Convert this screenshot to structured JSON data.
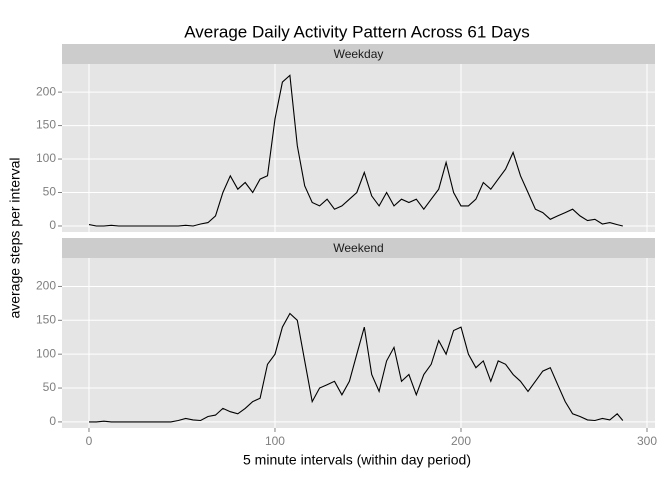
{
  "chart_data": {
    "type": "line",
    "title": "Average Daily Activity Pattern Across 61 Days",
    "x_label": "5 minute intervals (within day period)",
    "y_label": "average steps per interval",
    "xlim": [
      -14.5,
      304.3
    ],
    "xticks": [
      0,
      100,
      200,
      300
    ],
    "ylim": [
      -9,
      242
    ],
    "yticks": [
      0,
      50,
      100,
      150,
      200
    ],
    "color": "#000000",
    "x": [
      0,
      4,
      8,
      12,
      16,
      20,
      24,
      28,
      32,
      36,
      40,
      44,
      48,
      52,
      56,
      60,
      64,
      68,
      72,
      76,
      80,
      84,
      88,
      92,
      96,
      100,
      104,
      108,
      112,
      116,
      120,
      124,
      128,
      132,
      136,
      140,
      144,
      148,
      152,
      156,
      160,
      164,
      168,
      172,
      176,
      180,
      184,
      188,
      192,
      196,
      200,
      204,
      208,
      212,
      216,
      220,
      224,
      228,
      232,
      236,
      240,
      244,
      248,
      252,
      256,
      260,
      264,
      268,
      272,
      276,
      280,
      284,
      287
    ],
    "panels": [
      {
        "name": "Weekday",
        "values": [
          2,
          0,
          0,
          1,
          0,
          0,
          0,
          0,
          0,
          0,
          0,
          0,
          0,
          1,
          0,
          3,
          5,
          15,
          50,
          75,
          55,
          65,
          50,
          70,
          75,
          160,
          215,
          225,
          120,
          60,
          35,
          30,
          40,
          25,
          30,
          40,
          50,
          80,
          45,
          30,
          50,
          30,
          40,
          35,
          40,
          25,
          40,
          55,
          95,
          50,
          30,
          30,
          40,
          65,
          55,
          70,
          85,
          110,
          75,
          50,
          25,
          20,
          10,
          15,
          20,
          25,
          15,
          8,
          10,
          3,
          5,
          2,
          0
        ]
      },
      {
        "name": "Weekend",
        "values": [
          0,
          0,
          1,
          0,
          0,
          0,
          0,
          0,
          0,
          0,
          0,
          0,
          2,
          5,
          3,
          2,
          8,
          10,
          20,
          15,
          12,
          20,
          30,
          35,
          85,
          100,
          140,
          160,
          150,
          90,
          30,
          50,
          55,
          60,
          40,
          60,
          100,
          140,
          70,
          45,
          90,
          110,
          60,
          70,
          40,
          70,
          85,
          120,
          100,
          135,
          140,
          100,
          80,
          90,
          60,
          90,
          85,
          70,
          60,
          45,
          60,
          75,
          80,
          55,
          30,
          12,
          8,
          3,
          2,
          5,
          3,
          12,
          2
        ]
      }
    ]
  }
}
